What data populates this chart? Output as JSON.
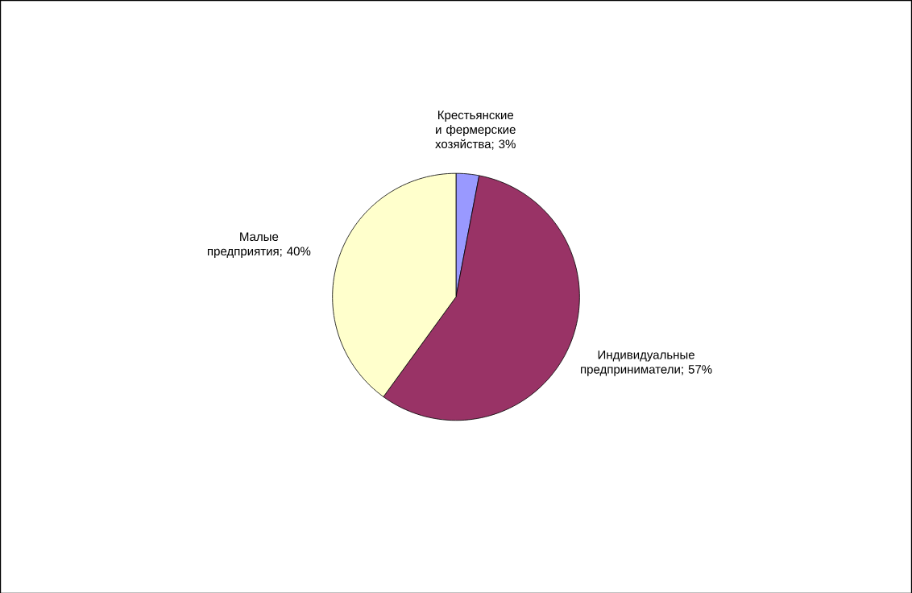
{
  "chart_data": {
    "type": "pie",
    "categories": [
      "Крестьянские и фермерские хозяйства",
      "Индивидуальные предприниматели",
      "Малые предприятия"
    ],
    "values": [
      3,
      57,
      40
    ],
    "value_labels": [
      "; 3%",
      "; 57%",
      "; 40%"
    ],
    "colors": [
      "#9999ff",
      "#993366",
      "#ffffcc"
    ]
  }
}
